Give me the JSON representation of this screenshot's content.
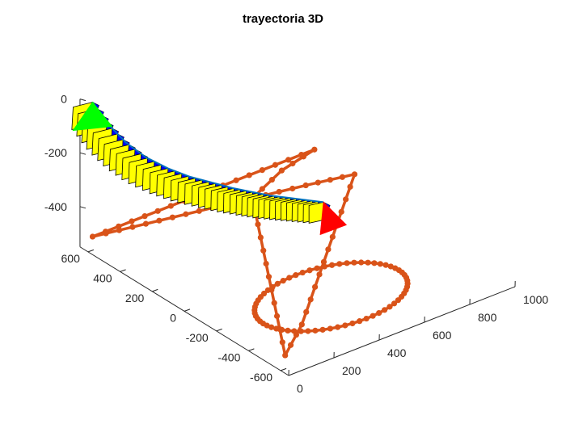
{
  "chart_data": {
    "type": "line",
    "title": "trayectoria 3D",
    "xlabel": "",
    "ylabel": "",
    "zlabel": "",
    "xlim": [
      0,
      1000
    ],
    "ylim": [
      -650,
      650
    ],
    "zlim": [
      -550,
      0
    ],
    "x_ticks": [
      "0",
      "200",
      "400",
      "600",
      "800",
      "1000"
    ],
    "y_ticks": [
      "-600",
      "-400",
      "-200",
      "0",
      "200",
      "400",
      "600"
    ],
    "z_ticks": [
      "0",
      "-200",
      "-400"
    ],
    "colors": {
      "path": "#D95319",
      "trajectory": "#0072BD",
      "start_marker": "#00FF00",
      "end_marker": "#FF0000",
      "frame_fill": "#FFFF00",
      "frame_side": "#0000FF",
      "frame_edge": "#000000"
    },
    "series": [
      {
        "x": [
          20,
          220,
          420,
          620,
          820,
          1000,
          800,
          600,
          400,
          200,
          20,
          220,
          420,
          620,
          820,
          1000,
          20
        ],
        "y": [
          600,
          550,
          500,
          450,
          400,
          350,
          150,
          -50,
          -250,
          -450,
          -600,
          -250,
          100,
          450,
          550,
          600,
          600
        ],
        "z": [
          -500,
          -500,
          -500,
          -500,
          -500,
          -500,
          -500,
          -500,
          -500,
          -500,
          -500,
          -500,
          -500,
          -500,
          -500,
          -500,
          -500
        ]
      },
      {
        "ellipse_center": [
          400,
          -350,
          -500
        ],
        "ellipse_radii": [
          300,
          220
        ]
      },
      {
        "x": [
          20,
          60,
          110,
          170,
          240,
          310,
          380,
          440,
          500,
          550,
          600,
          650,
          700
        ],
        "y": [
          600,
          560,
          520,
          480,
          440,
          400,
          360,
          320,
          280,
          240,
          200,
          160,
          120
        ],
        "z": [
          0,
          -80,
          -150,
          -210,
          -260,
          -300,
          -330,
          -355,
          -375,
          -390,
          -400,
          -410,
          -420
        ]
      }
    ]
  }
}
